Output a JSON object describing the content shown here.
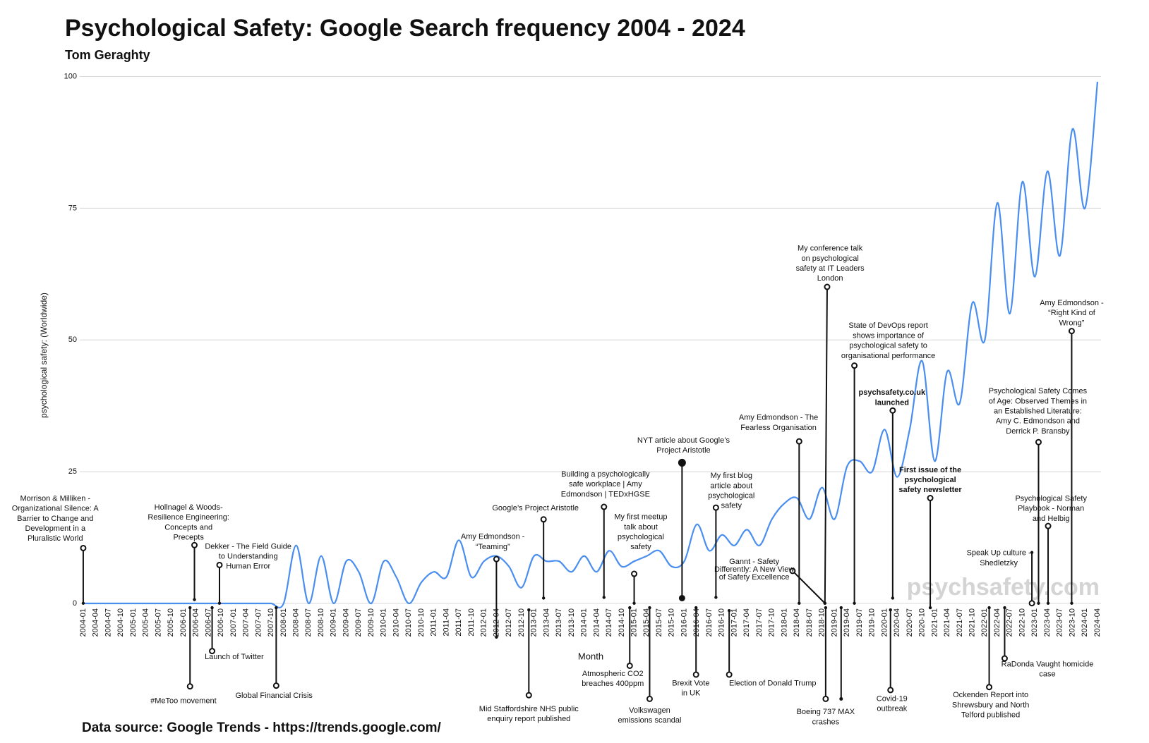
{
  "chart_data": {
    "type": "line",
    "title": "Psychological Safety: Google Search frequency 2004 - 2024",
    "subtitle": "Tom Geraghty",
    "y_label": "psychological safety: (Worldwide)",
    "x_label": "Month",
    "source": "Data source: Google Trends - https://trends.google.com/",
    "watermark": "psychsafety.com",
    "ylim": [
      0,
      100
    ],
    "yticks": [
      0,
      25,
      50,
      75,
      100
    ],
    "grid": true,
    "categories": [
      "2004-01",
      "2004-04",
      "2004-07",
      "2004-10",
      "2005-01",
      "2005-04",
      "2005-07",
      "2005-10",
      "2006-01",
      "2006-04",
      "2006-07",
      "2006-10",
      "2007-01",
      "2007-04",
      "2007-07",
      "2007-10",
      "2008-01",
      "2008-04",
      "2008-07",
      "2008-10",
      "2009-01",
      "2009-04",
      "2009-07",
      "2009-10",
      "2010-01",
      "2010-04",
      "2010-07",
      "2010-10",
      "2011-01",
      "2011-04",
      "2011-07",
      "2011-10",
      "2012-01",
      "2012-04",
      "2012-07",
      "2012-10",
      "2013-01",
      "2013-04",
      "2013-07",
      "2013-10",
      "2014-01",
      "2014-04",
      "2014-07",
      "2014-10",
      "2015-01",
      "2015-04",
      "2015-07",
      "2015-10",
      "2016-01",
      "2016-04",
      "2016-07",
      "2016-10",
      "2017-01",
      "2017-04",
      "2017-07",
      "2017-10",
      "2018-01",
      "2018-04",
      "2018-07",
      "2018-10",
      "2019-01",
      "2019-04",
      "2019-07",
      "2019-10",
      "2020-01",
      "2020-04",
      "2020-07",
      "2020-10",
      "2021-01",
      "2021-04",
      "2021-07",
      "2021-10",
      "2022-01",
      "2022-04",
      "2022-07",
      "2022-10",
      "2023-01",
      "2023-04",
      "2023-07",
      "2023-10",
      "2024-01",
      "2024-04"
    ],
    "series": [
      {
        "name": "psychological safety",
        "color": "#4a8ef0",
        "values": [
          0,
          0,
          0,
          0,
          0,
          0,
          0,
          0,
          0,
          0,
          0,
          0,
          0,
          0,
          0,
          0,
          0,
          11,
          0,
          9,
          0,
          8,
          6,
          0,
          8,
          5,
          0,
          4,
          6,
          5,
          12,
          5,
          8,
          9,
          7,
          3,
          9,
          8,
          8,
          6,
          9,
          6,
          10,
          7,
          8,
          9,
          10,
          7,
          8,
          15,
          10,
          13,
          11,
          14,
          11,
          16,
          19,
          20,
          16,
          22,
          16,
          26,
          27,
          25,
          33,
          24,
          33,
          46,
          27,
          44,
          38,
          57,
          50,
          76,
          55,
          80,
          62,
          82,
          66,
          90,
          75,
          99
        ]
      }
    ],
    "annotations": [
      {
        "lines": [
          "Morrison &  Milliken -",
          "Organizational Silence: A",
          "Barrier to Change and",
          "Development in a",
          "Pluralistic World"
        ]
      },
      {
        "lines": [
          "Hollnagel & Woods-",
          "Resilience Engineering:",
          "Concepts and",
          "Precepts"
        ]
      },
      {
        "lines": [
          "Dekker - The Field Guide",
          "to Understanding",
          "Human Error"
        ]
      },
      {
        "lines": [
          "#MeToo movement"
        ]
      },
      {
        "lines": [
          "Launch of Twitter"
        ]
      },
      {
        "lines": [
          "Global Financial Crisis"
        ]
      },
      {
        "lines": [
          "Amy Edmondson -",
          "“Teaming”"
        ]
      },
      {
        "lines": [
          "Google’s Project Aristotle"
        ]
      },
      {
        "lines": [
          "Mid Staffordshire NHS public",
          "enquiry report published"
        ]
      },
      {
        "lines": [
          "Building a psychologically",
          "safe workplace | Amy",
          "Edmondson | TEDxHGSE"
        ]
      },
      {
        "lines": [
          "My first meetup",
          "talk about",
          "psychological",
          "safety"
        ]
      },
      {
        "lines": [
          "Atmospheric CO2",
          "breaches 400ppm"
        ]
      },
      {
        "lines": [
          "Volkswagen",
          "emissions scandal"
        ]
      },
      {
        "lines": [
          "NYT article about Google’s",
          "Project Aristotle"
        ]
      },
      {
        "lines": [
          "Brexit Vote",
          "in UK"
        ]
      },
      {
        "lines": [
          "My first blog",
          "article about",
          "psychological",
          "safety"
        ]
      },
      {
        "lines": [
          "Election of Donald Trump"
        ]
      },
      {
        "lines": [
          "Gannt - Safety",
          "Differently: A New View",
          "of Safety Excellence"
        ]
      },
      {
        "lines": [
          "Amy Edmondson - The",
          "Fearless Organisation"
        ]
      },
      {
        "lines": [
          "My conference talk",
          "on psychological",
          "safety at IT Leaders",
          "London"
        ]
      },
      {
        "lines": [
          "Boeing 737 MAX",
          "crashes"
        ]
      },
      {
        "lines": [
          "State of DevOps report",
          "shows importance of",
          "psychological safety to",
          "organisational performance"
        ]
      },
      {
        "lines": [
          "psychsafety.co.uk",
          "launched"
        ],
        "bold": true
      },
      {
        "lines": [
          "Covid-19",
          "outbreak"
        ]
      },
      {
        "lines": [
          "First issue of the",
          "psychological",
          "safety newsletter"
        ],
        "bold": true
      },
      {
        "lines": [
          "Ockenden Report into",
          "Shrewsbury and North",
          "Telford published"
        ]
      },
      {
        "lines": [
          "Psychological Safety Comes",
          "of Age: Observed Themes in",
          "an Established Literature:",
          "Amy C. Edmondson and",
          "Derrick P. Bransby"
        ]
      },
      {
        "lines": [
          "Amy Edmondson -",
          "“Right Kind of",
          "Wrong”"
        ]
      },
      {
        "lines": [
          "Psychological Safety",
          "Playbook - Norman",
          "and Helbig"
        ]
      },
      {
        "lines": [
          "Speak Up culture -",
          "Shedletzky"
        ]
      },
      {
        "lines": [
          "RaDonda Vaught homicide",
          "case"
        ]
      }
    ]
  }
}
